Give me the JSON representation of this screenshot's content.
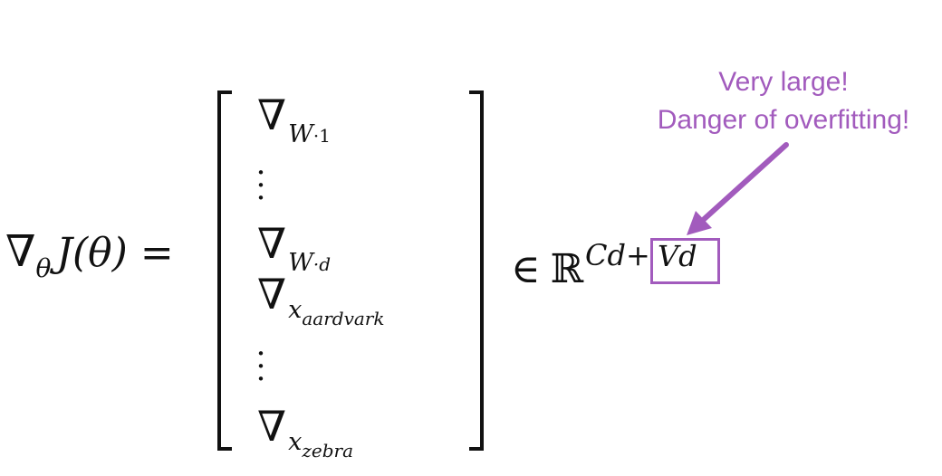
{
  "equation": {
    "nabla": "∇",
    "theta_sub": "θ",
    "lhs_body": "J(θ) =",
    "entries": [
      {
        "symbol": "∇",
        "sub": "W·1"
      },
      {
        "symbol": "∇",
        "sub": "W·d"
      },
      {
        "symbol": "∇",
        "sub": "x_aardvark"
      },
      {
        "symbol": "∇",
        "sub": "x_zebra"
      }
    ],
    "entry_subs_display": [
      "W",
      "·1",
      "W",
      "·d",
      "x",
      "aardvark",
      "x",
      "zebra"
    ],
    "vdots": "⋮",
    "element_of": "∈",
    "reals": "ℝ",
    "exponent_left": "Cd+",
    "exponent_boxed": "Vd"
  },
  "annotation": {
    "line1": "Very large!",
    "line2": "Danger of overfitting!",
    "color": "#a25bbd"
  }
}
